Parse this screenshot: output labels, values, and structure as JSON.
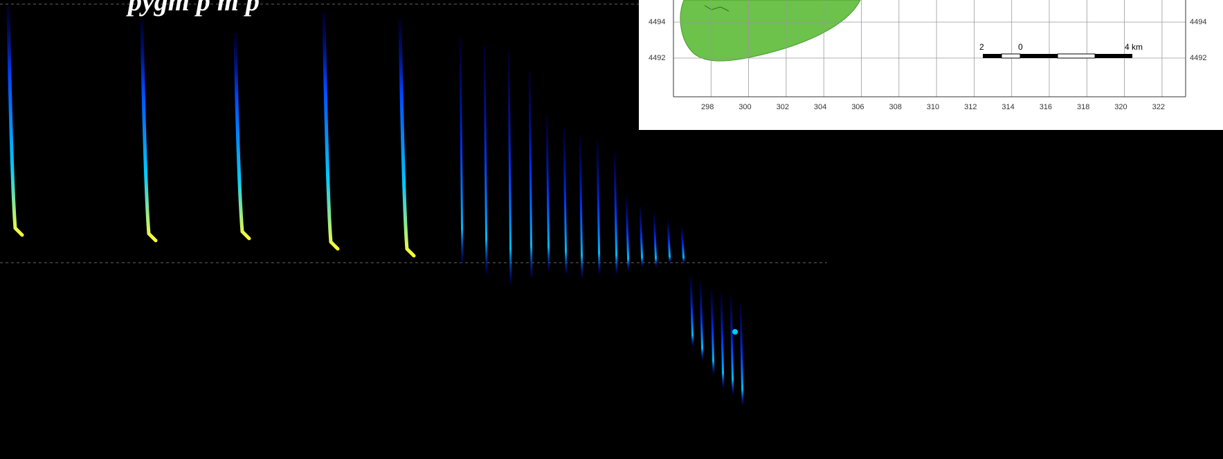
{
  "slide": {
    "title_fragment": "pygm     p     m     p"
  },
  "inset_map": {
    "y_ticks": [
      "4494",
      "4492"
    ],
    "x_ticks": [
      "298",
      "300",
      "302",
      "304",
      "306",
      "308",
      "310",
      "312",
      "314",
      "316",
      "318",
      "320",
      "322"
    ],
    "scale_bar": {
      "labels": [
        "2",
        "0",
        "4 km"
      ]
    },
    "colors": {
      "region_fill": "#6cc24a",
      "grid": "#999999",
      "frame": "#333333"
    }
  },
  "spectrogram": {
    "colors": {
      "background": "#000000",
      "low": "#0000cc",
      "mid": "#00ccff",
      "high": "#ffff33"
    }
  }
}
